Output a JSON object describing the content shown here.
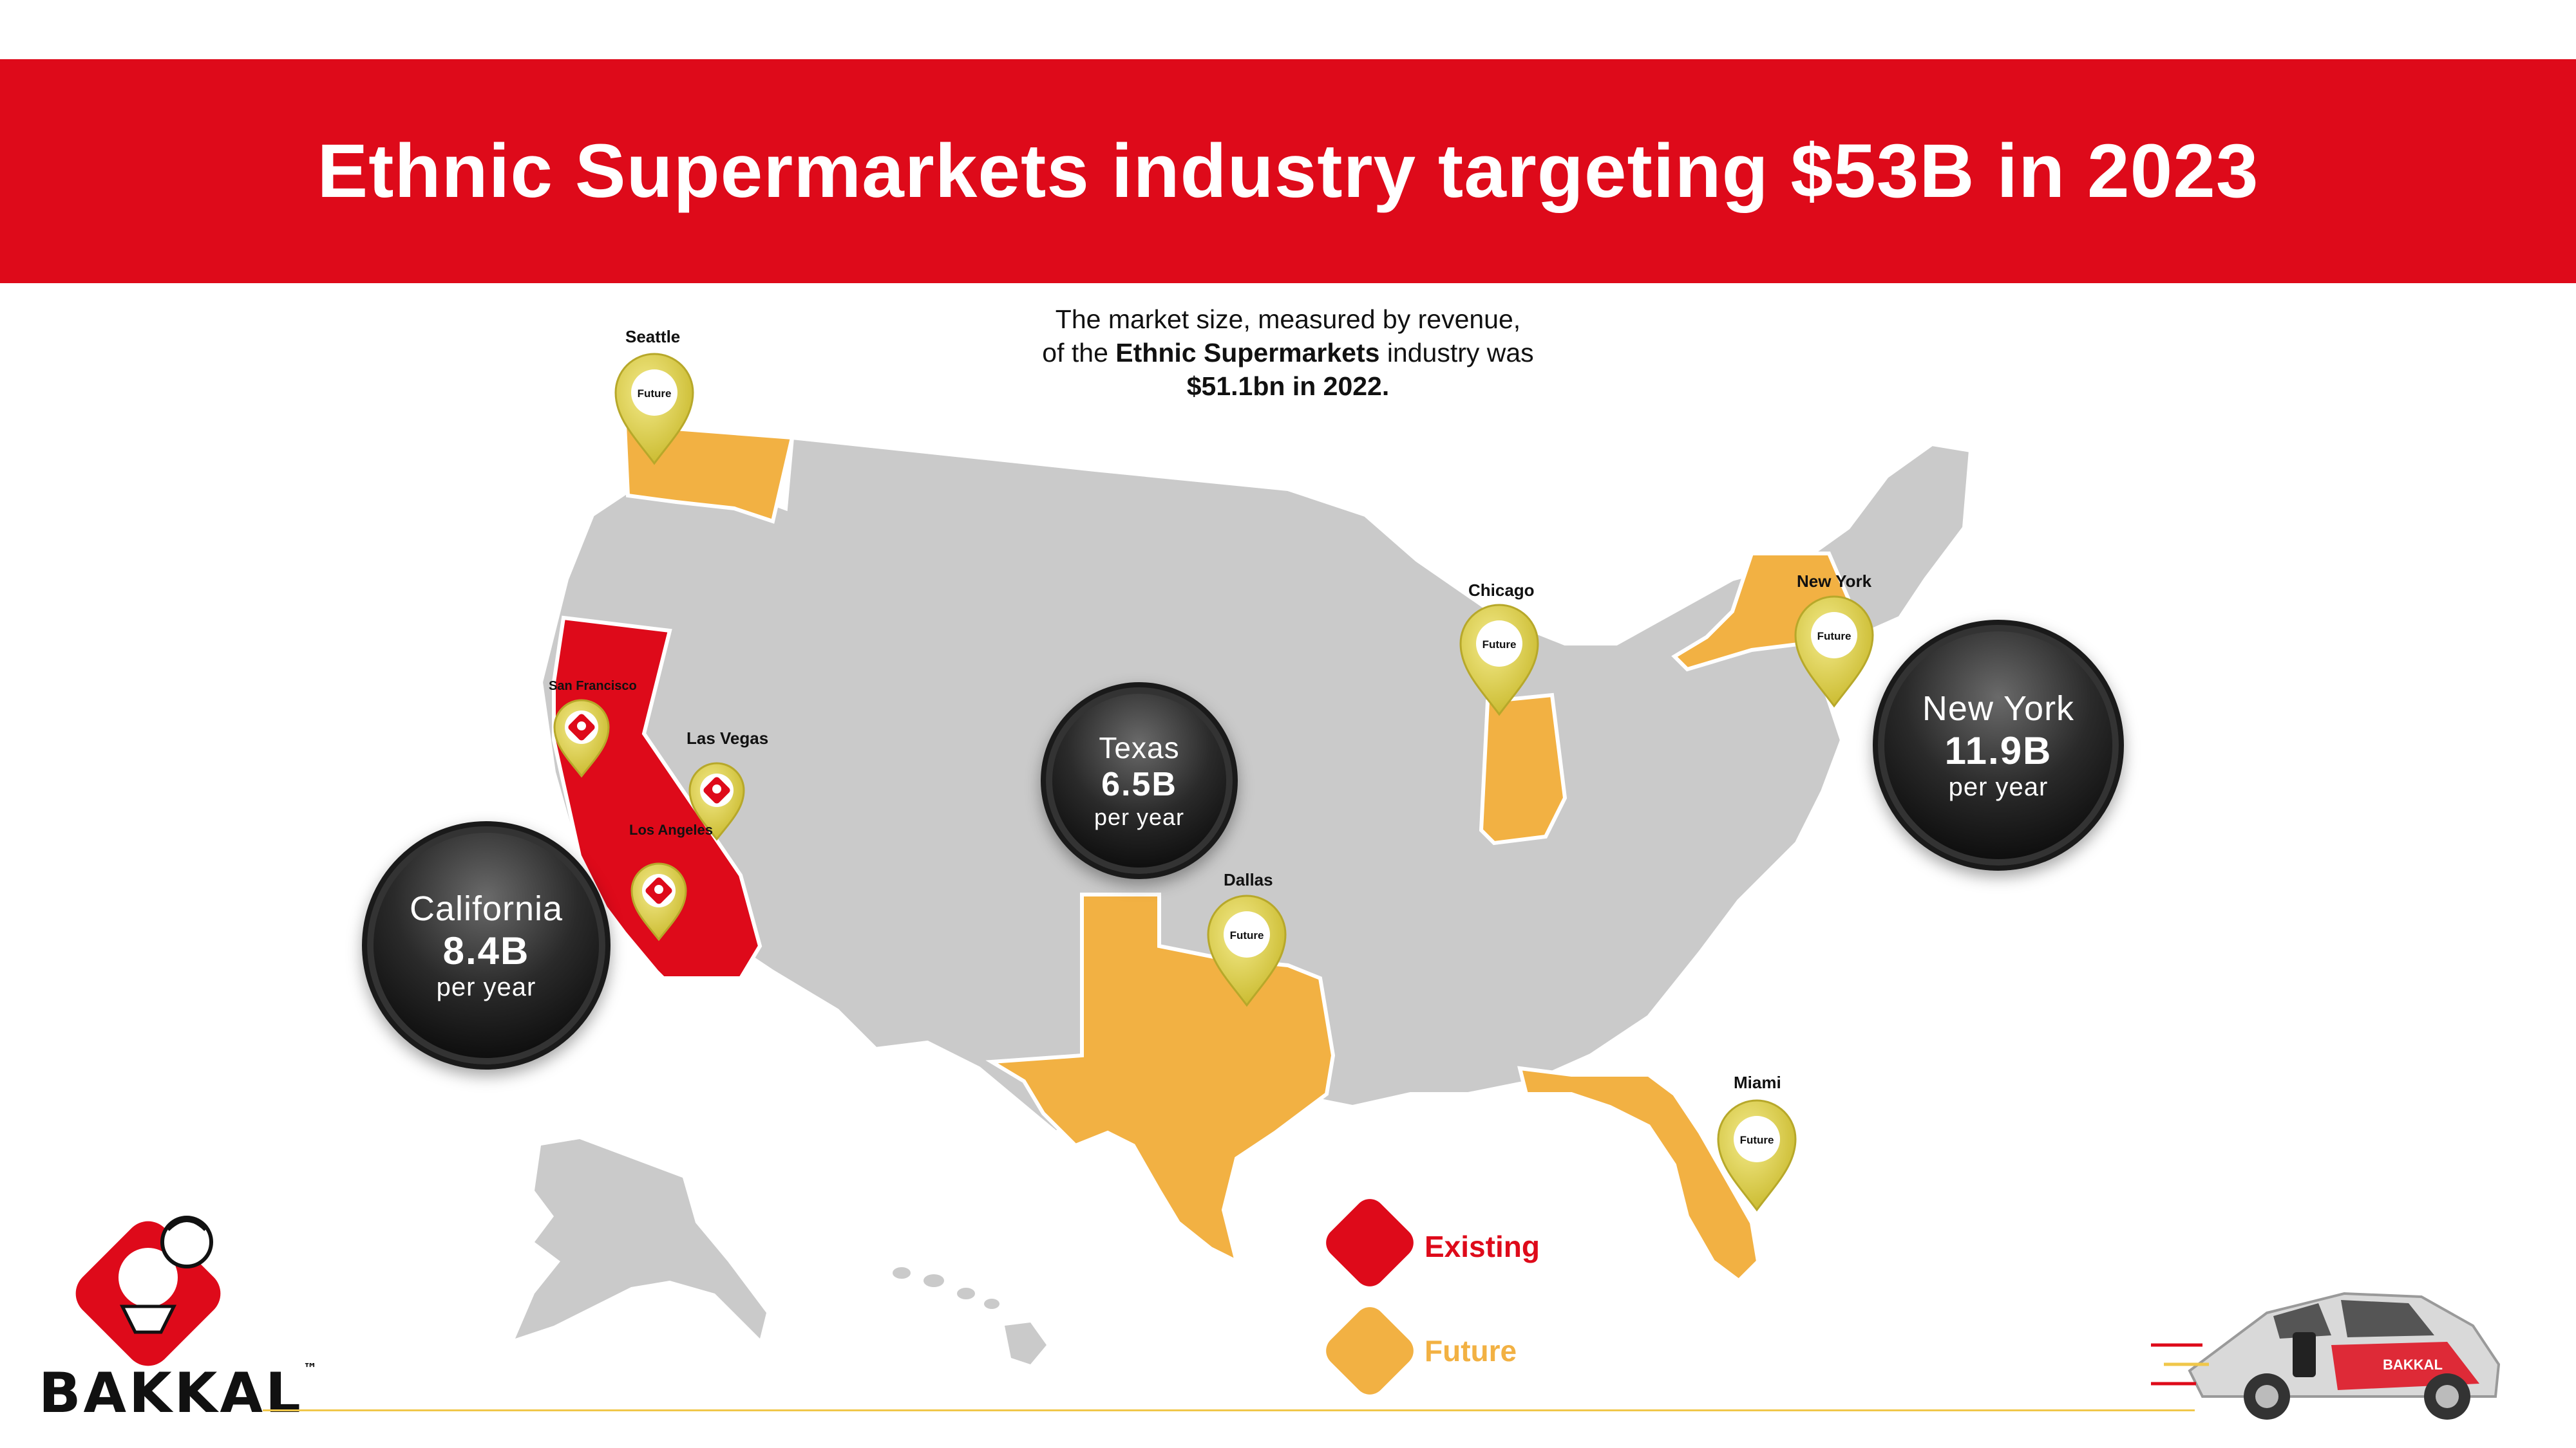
{
  "header": {
    "title_prefix": "Ethnic Supermarkets industry targeting ",
    "title_bold": "$53B",
    "title_suffix": " in 2023"
  },
  "subtitle": {
    "line1": "The market size, measured by revenue,",
    "line2_prefix": "of the ",
    "line2_bold": "Ethnic Supermarkets",
    "line2_suffix": " industry was",
    "line3": "$51.1bn in 2022."
  },
  "colors": {
    "brand_red": "#de0a1a",
    "existing": "#de0a1a",
    "future": "#f2b143",
    "state_gray": "#cacaca",
    "pin": "#e3d64a"
  },
  "cities": {
    "seattle": {
      "label": "Seattle",
      "pin_text": "Future"
    },
    "san_francisco": {
      "label": "San Francisco",
      "pin_icon": "shop-icon"
    },
    "las_vegas": {
      "label": "Las Vegas",
      "pin_icon": "shop-icon"
    },
    "los_angeles": {
      "label": "Los Angeles",
      "pin_icon": "shop-icon"
    },
    "chicago": {
      "label": "Chicago",
      "pin_text": "Future"
    },
    "new_york": {
      "label": "New York",
      "pin_text": "Future"
    },
    "dallas": {
      "label": "Dallas",
      "pin_text": "Future"
    },
    "miami": {
      "label": "Miami",
      "pin_text": "Future"
    }
  },
  "bubbles": {
    "california": {
      "name": "California",
      "value": "8.4B",
      "unit": "per year"
    },
    "texas": {
      "name": "Texas",
      "value": "6.5B",
      "unit": "per year"
    },
    "new_york": {
      "name": "New York",
      "value": "11.9B",
      "unit": "per year"
    }
  },
  "legend": {
    "existing": "Existing",
    "future": "Future"
  },
  "brand": {
    "logo": "BAKKAL",
    "trademark": "™",
    "car_logo": "BAKKAL"
  }
}
